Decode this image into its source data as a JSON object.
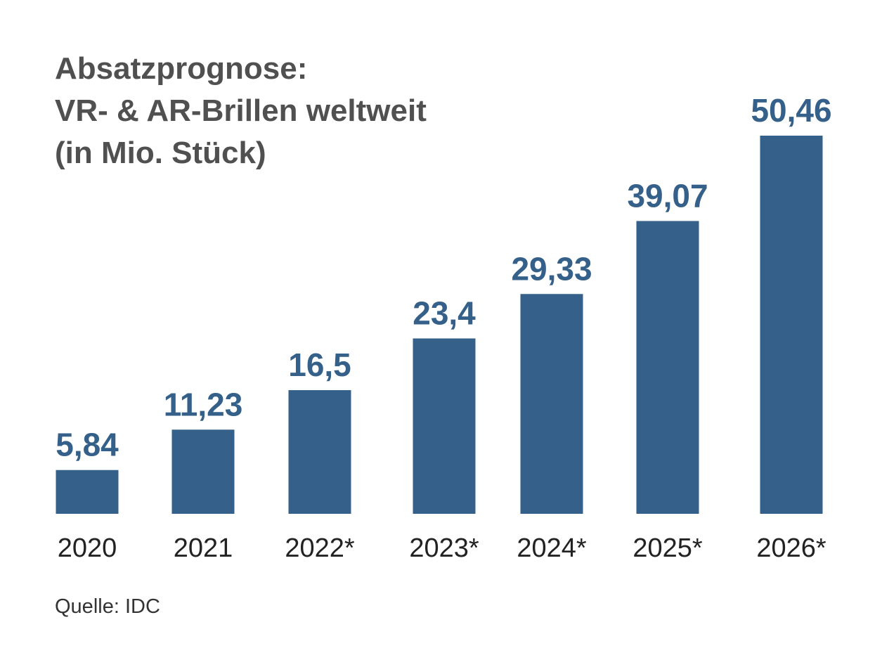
{
  "chart_data": {
    "type": "bar",
    "title_lines": [
      "Absatzprognose:",
      "VR- & AR-Brillen weltweit",
      "(in Mio. Stück)"
    ],
    "categories": [
      "2020",
      "2021",
      "2022*",
      "2023*",
      "2024*",
      "2025*",
      "2026*"
    ],
    "values": [
      5.84,
      11.23,
      16.5,
      23.4,
      29.33,
      39.07,
      50.46
    ],
    "value_labels": [
      "5,84",
      "11,23",
      "16,5",
      "23,4",
      "29,33",
      "39,07",
      "50,46"
    ],
    "xlabel": "",
    "ylabel": "",
    "ylim": [
      0,
      50.46
    ],
    "grid": false,
    "legend": "none",
    "bar_color": "#346089",
    "value_label_color": "#346089",
    "title_color": "#505050"
  },
  "source": "Quelle: IDC"
}
